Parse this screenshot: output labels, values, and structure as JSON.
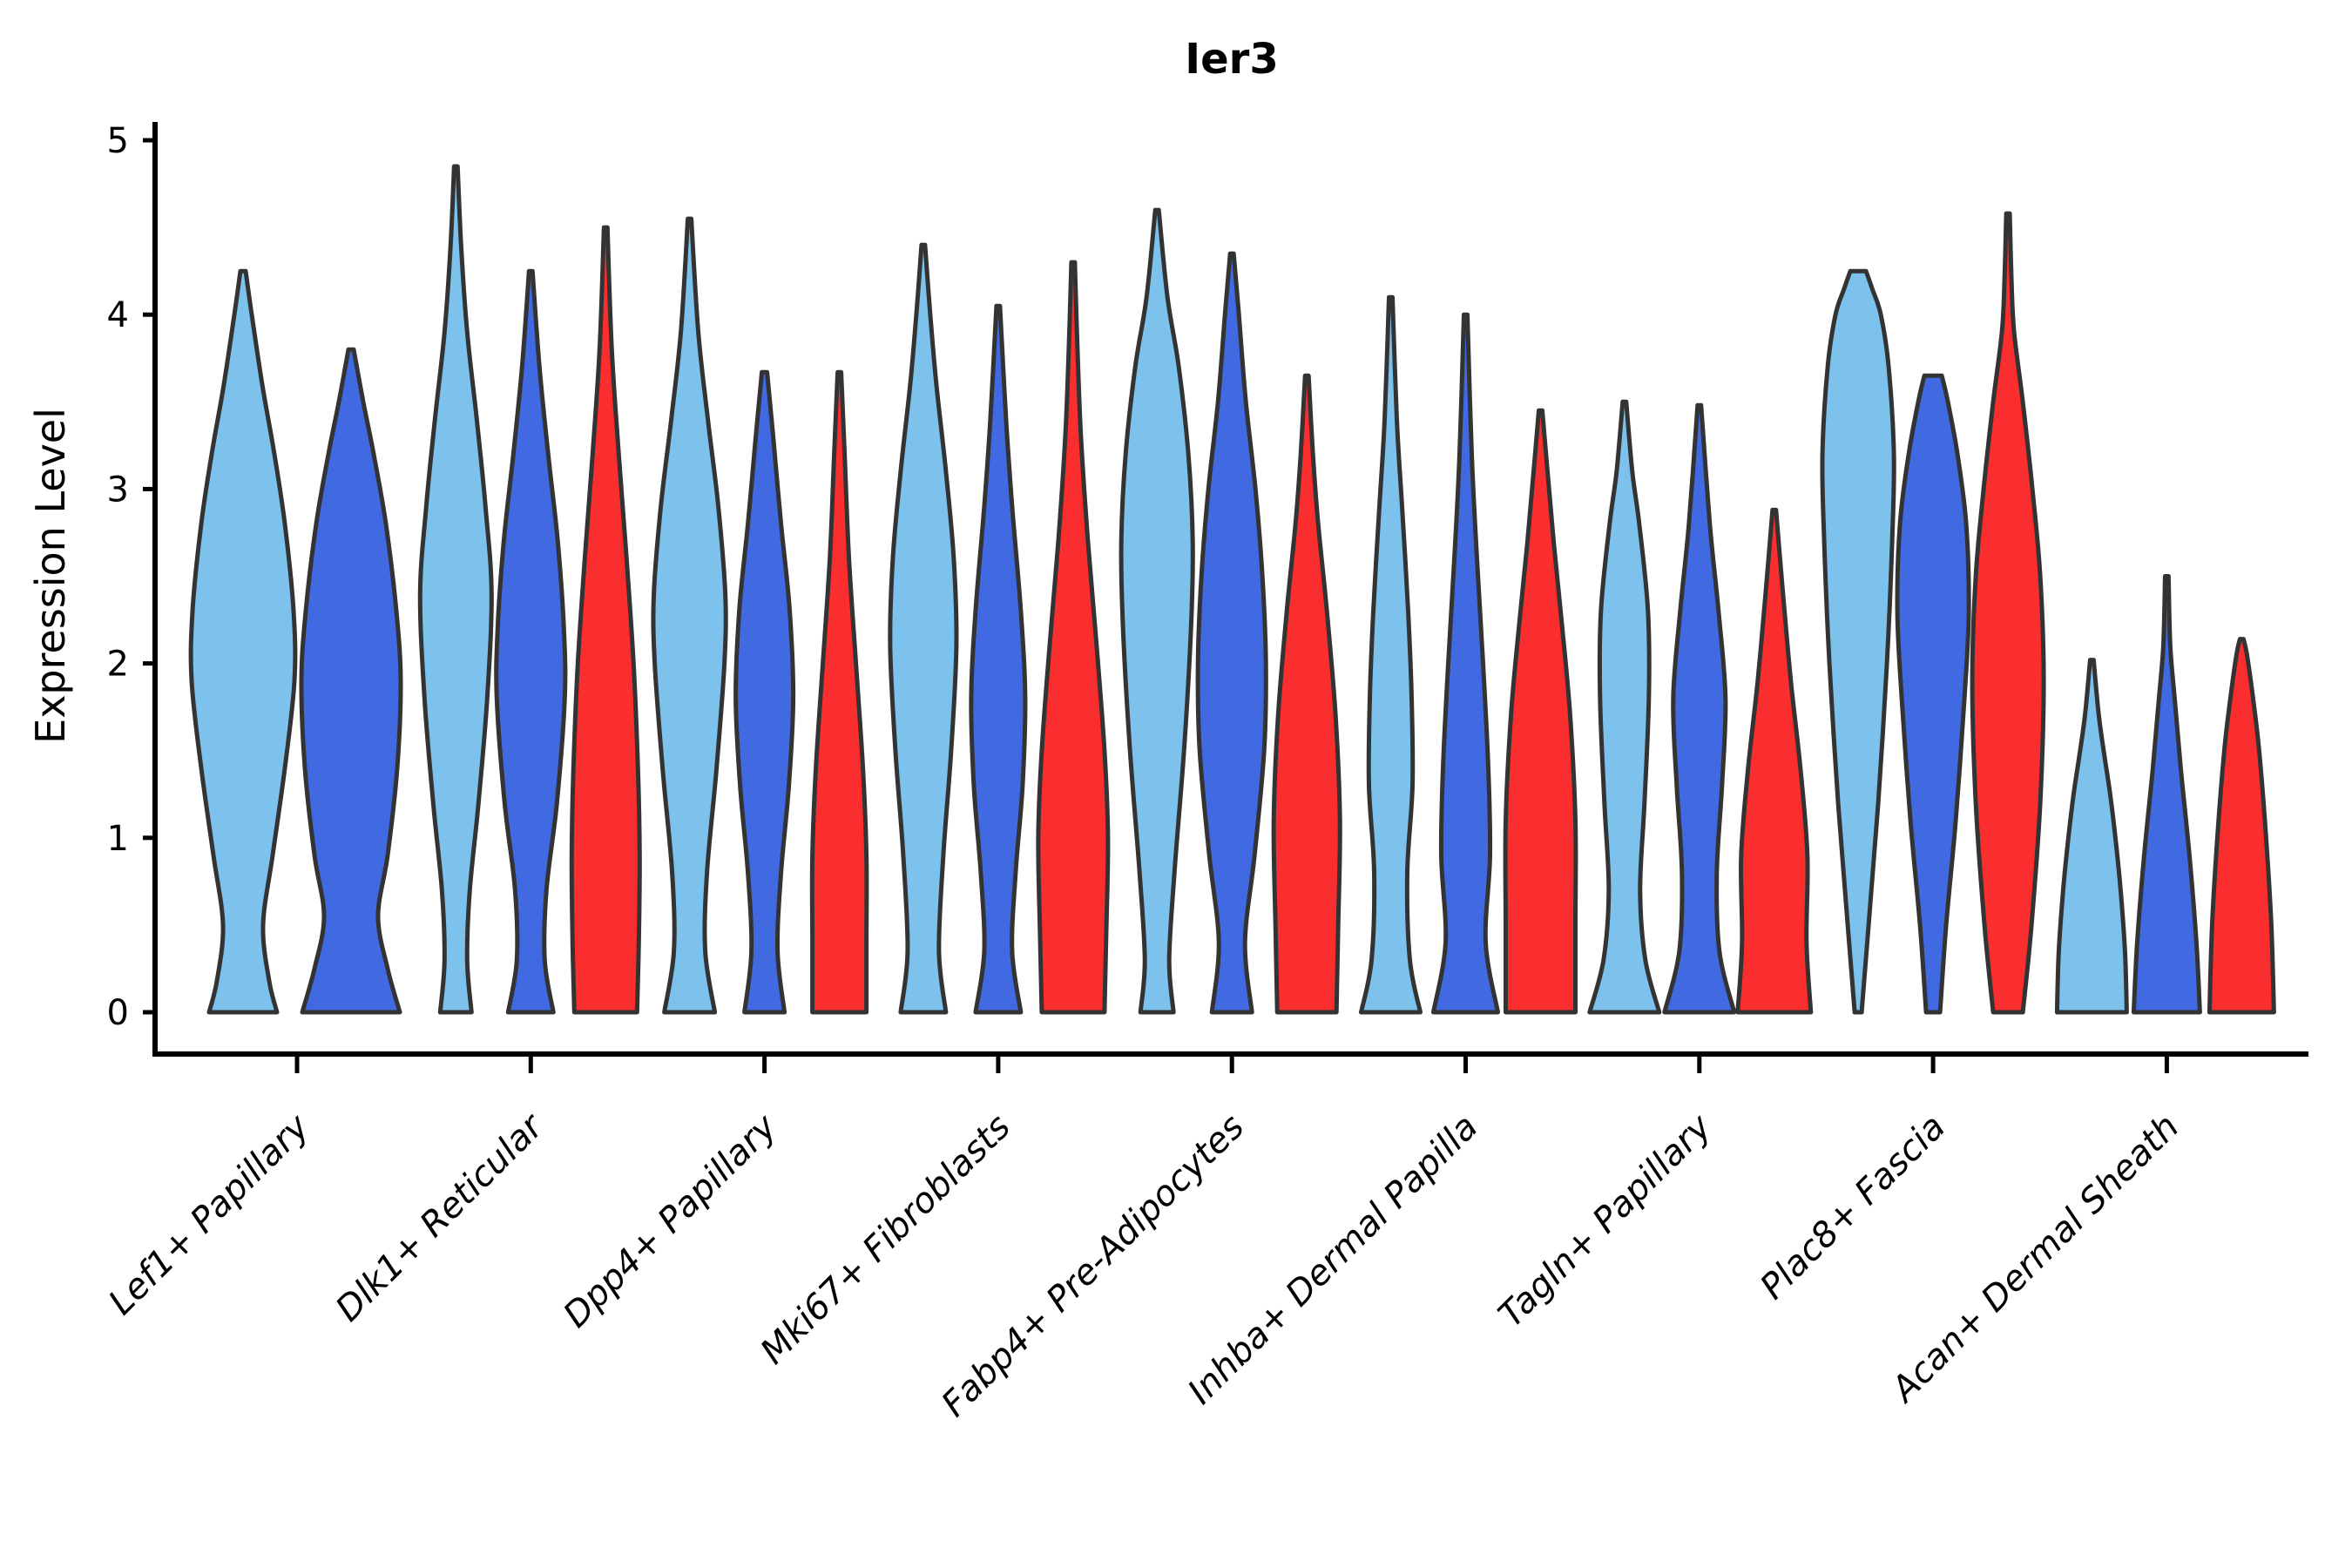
{
  "chart_data": {
    "type": "violin",
    "title": "Ier3",
    "ylabel": "Expression Level",
    "xlabel": "",
    "ylim": [
      0,
      5
    ],
    "yticks": [
      "0",
      "1",
      "2",
      "3",
      "4",
      "5"
    ],
    "grid": false,
    "legend": "none",
    "categories": [
      "Lef1+ Papillary",
      "Dlk1+ Reticular",
      "Dpp4+ Papillary",
      "Mki67+ Fibroblasts",
      "Fabp4+ Pre-Adipocytes",
      "Inhba+ Dermal Papilla",
      "Tagln+ Papillary",
      "Plac8+ Fascia",
      "Acan+ Dermal Sheath"
    ],
    "hues": [
      {
        "name": "hue_1",
        "color": "#7CC2EC"
      },
      {
        "name": "hue_2",
        "color": "#4169E1"
      },
      {
        "name": "hue_3",
        "color": "#FA2E2E"
      }
    ],
    "edge_color": "#333333",
    "axis_color": "#000000",
    "profile_units": "pairs of [expression_value, half_width_px]",
    "violins": [
      {
        "category_index": 0,
        "hue": 0,
        "max": 4.25,
        "profile": [
          [
            0,
            39
          ],
          [
            0.18,
            30
          ],
          [
            0.5,
            23
          ],
          [
            0.9,
            34
          ],
          [
            1.4,
            48
          ],
          [
            1.9,
            59
          ],
          [
            2.3,
            58
          ],
          [
            2.8,
            48
          ],
          [
            3.2,
            36
          ],
          [
            3.6,
            22
          ],
          [
            4.0,
            10
          ],
          [
            4.25,
            3
          ]
        ]
      },
      {
        "category_index": 0,
        "hue": 1,
        "max": 3.8,
        "profile": [
          [
            0,
            56
          ],
          [
            0.25,
            42
          ],
          [
            0.55,
            31
          ],
          [
            0.9,
            42
          ],
          [
            1.4,
            53
          ],
          [
            1.9,
            57
          ],
          [
            2.3,
            52
          ],
          [
            2.8,
            40
          ],
          [
            3.2,
            26
          ],
          [
            3.5,
            14
          ],
          [
            3.8,
            3
          ]
        ]
      },
      {
        "category_index": 1,
        "hue": 0,
        "max": 4.85,
        "profile": [
          [
            0,
            18
          ],
          [
            0.3,
            13
          ],
          [
            0.7,
            16
          ],
          [
            1.2,
            26
          ],
          [
            1.8,
            36
          ],
          [
            2.4,
            41
          ],
          [
            2.9,
            34
          ],
          [
            3.4,
            24
          ],
          [
            3.9,
            13
          ],
          [
            4.4,
            6
          ],
          [
            4.85,
            2
          ]
        ]
      },
      {
        "category_index": 1,
        "hue": 1,
        "max": 4.25,
        "profile": [
          [
            0,
            26
          ],
          [
            0.3,
            16
          ],
          [
            0.7,
            18
          ],
          [
            1.2,
            30
          ],
          [
            1.8,
            39
          ],
          [
            2.2,
            38
          ],
          [
            2.7,
            31
          ],
          [
            3.2,
            20
          ],
          [
            3.7,
            10
          ],
          [
            4.25,
            2
          ]
        ]
      },
      {
        "category_index": 1,
        "hue": 2,
        "max": 4.5,
        "profile": [
          [
            0,
            36
          ],
          [
            0.4,
            38
          ],
          [
            0.9,
            39
          ],
          [
            1.4,
            37
          ],
          [
            2.0,
            32
          ],
          [
            2.6,
            24
          ],
          [
            3.2,
            15
          ],
          [
            3.8,
            7
          ],
          [
            4.5,
            2
          ]
        ]
      },
      {
        "category_index": 2,
        "hue": 0,
        "max": 4.55,
        "profile": [
          [
            0,
            29
          ],
          [
            0.35,
            18
          ],
          [
            0.8,
            20
          ],
          [
            1.4,
            31
          ],
          [
            2.0,
            40
          ],
          [
            2.4,
            41
          ],
          [
            2.9,
            33
          ],
          [
            3.4,
            21
          ],
          [
            3.9,
            10
          ],
          [
            4.55,
            2
          ]
        ]
      },
      {
        "category_index": 2,
        "hue": 1,
        "max": 3.67,
        "profile": [
          [
            0,
            23
          ],
          [
            0.35,
            15
          ],
          [
            0.8,
            19
          ],
          [
            1.3,
            28
          ],
          [
            1.8,
            33
          ],
          [
            2.3,
            29
          ],
          [
            2.8,
            19
          ],
          [
            3.3,
            10
          ],
          [
            3.67,
            3
          ]
        ]
      },
      {
        "category_index": 2,
        "hue": 2,
        "max": 3.67,
        "profile": [
          [
            0,
            31
          ],
          [
            0.4,
            31
          ],
          [
            0.9,
            31
          ],
          [
            1.4,
            27
          ],
          [
            2.0,
            19
          ],
          [
            2.6,
            11
          ],
          [
            3.2,
            6
          ],
          [
            3.67,
            2
          ]
        ]
      },
      {
        "category_index": 3,
        "hue": 0,
        "max": 4.4,
        "profile": [
          [
            0,
            26
          ],
          [
            0.35,
            18
          ],
          [
            0.9,
            23
          ],
          [
            1.5,
            32
          ],
          [
            2.1,
            38
          ],
          [
            2.6,
            35
          ],
          [
            3.1,
            26
          ],
          [
            3.6,
            15
          ],
          [
            4.0,
            8
          ],
          [
            4.4,
            2
          ]
        ]
      },
      {
        "category_index": 3,
        "hue": 1,
        "max": 4.05,
        "profile": [
          [
            0,
            26
          ],
          [
            0.35,
            16
          ],
          [
            0.8,
            20
          ],
          [
            1.3,
            28
          ],
          [
            1.8,
            31
          ],
          [
            2.3,
            26
          ],
          [
            2.9,
            16
          ],
          [
            3.4,
            9
          ],
          [
            4.05,
            2
          ]
        ]
      },
      {
        "category_index": 3,
        "hue": 2,
        "max": 4.3,
        "profile": [
          [
            0,
            36
          ],
          [
            0.45,
            38
          ],
          [
            1.0,
            40
          ],
          [
            1.5,
            36
          ],
          [
            2.1,
            27
          ],
          [
            2.7,
            17
          ],
          [
            3.3,
            9
          ],
          [
            3.8,
            5
          ],
          [
            4.3,
            2
          ]
        ]
      },
      {
        "category_index": 4,
        "hue": 0,
        "max": 4.6,
        "profile": [
          [
            0,
            19
          ],
          [
            0.3,
            14
          ],
          [
            0.8,
            20
          ],
          [
            1.5,
            31
          ],
          [
            2.2,
            39
          ],
          [
            2.7,
            41
          ],
          [
            3.2,
            36
          ],
          [
            3.7,
            25
          ],
          [
            4.1,
            12
          ],
          [
            4.6,
            2
          ]
        ]
      },
      {
        "category_index": 4,
        "hue": 1,
        "max": 4.35,
        "profile": [
          [
            0,
            23
          ],
          [
            0.4,
            15
          ],
          [
            0.9,
            26
          ],
          [
            1.5,
            37
          ],
          [
            2.0,
            39
          ],
          [
            2.5,
            35
          ],
          [
            3.0,
            27
          ],
          [
            3.5,
            16
          ],
          [
            4.0,
            8
          ],
          [
            4.35,
            2
          ]
        ]
      },
      {
        "category_index": 4,
        "hue": 2,
        "max": 3.65,
        "profile": [
          [
            0,
            34
          ],
          [
            0.5,
            36
          ],
          [
            1.1,
            38
          ],
          [
            1.7,
            33
          ],
          [
            2.3,
            23
          ],
          [
            2.8,
            13
          ],
          [
            3.2,
            7
          ],
          [
            3.65,
            2
          ]
        ]
      },
      {
        "category_index": 5,
        "hue": 0,
        "max": 4.1,
        "profile": [
          [
            0,
            34
          ],
          [
            0.3,
            22
          ],
          [
            0.8,
            19
          ],
          [
            1.3,
            25
          ],
          [
            1.8,
            24
          ],
          [
            2.3,
            20
          ],
          [
            2.9,
            13
          ],
          [
            3.4,
            7
          ],
          [
            4.1,
            2
          ]
        ]
      },
      {
        "category_index": 5,
        "hue": 1,
        "max": 4.0,
        "profile": [
          [
            0,
            37
          ],
          [
            0.4,
            23
          ],
          [
            0.9,
            28
          ],
          [
            1.4,
            26
          ],
          [
            2.0,
            20
          ],
          [
            2.6,
            13
          ],
          [
            3.2,
            7
          ],
          [
            4.0,
            2
          ]
        ]
      },
      {
        "category_index": 5,
        "hue": 2,
        "max": 3.45,
        "profile": [
          [
            0,
            40
          ],
          [
            0.5,
            40
          ],
          [
            1.1,
            40
          ],
          [
            1.7,
            34
          ],
          [
            2.2,
            25
          ],
          [
            2.7,
            15
          ],
          [
            3.1,
            8
          ],
          [
            3.45,
            2
          ]
        ]
      },
      {
        "category_index": 6,
        "hue": 0,
        "max": 3.5,
        "profile": [
          [
            0,
            40
          ],
          [
            0.3,
            24
          ],
          [
            0.7,
            18
          ],
          [
            1.2,
            23
          ],
          [
            1.8,
            28
          ],
          [
            2.3,
            27
          ],
          [
            2.8,
            17
          ],
          [
            3.1,
            9
          ],
          [
            3.5,
            2
          ]
        ]
      },
      {
        "category_index": 6,
        "hue": 1,
        "max": 3.48,
        "profile": [
          [
            0,
            40
          ],
          [
            0.35,
            23
          ],
          [
            0.8,
            20
          ],
          [
            1.3,
            26
          ],
          [
            1.8,
            30
          ],
          [
            2.3,
            22
          ],
          [
            2.8,
            12
          ],
          [
            3.48,
            2
          ]
        ]
      },
      {
        "category_index": 6,
        "hue": 2,
        "max": 2.88,
        "profile": [
          [
            0,
            42
          ],
          [
            0.4,
            37
          ],
          [
            0.9,
            38
          ],
          [
            1.4,
            30
          ],
          [
            1.9,
            19
          ],
          [
            2.4,
            10
          ],
          [
            2.88,
            2
          ]
        ]
      },
      {
        "category_index": 7,
        "hue": 0,
        "max": 4.25,
        "profile": [
          [
            0,
            4
          ],
          [
            0.5,
            12
          ],
          [
            1.2,
            23
          ],
          [
            2.0,
            33
          ],
          [
            2.7,
            39
          ],
          [
            3.2,
            41
          ],
          [
            3.7,
            35
          ],
          [
            4.0,
            26
          ],
          [
            4.15,
            16
          ],
          [
            4.25,
            9
          ]
        ]
      },
      {
        "category_index": 7,
        "hue": 1,
        "max": 3.65,
        "profile": [
          [
            0,
            8
          ],
          [
            0.5,
            15
          ],
          [
            1.1,
            26
          ],
          [
            1.8,
            36
          ],
          [
            2.3,
            41
          ],
          [
            2.8,
            38
          ],
          [
            3.2,
            28
          ],
          [
            3.5,
            17
          ],
          [
            3.65,
            10
          ]
        ]
      },
      {
        "category_index": 7,
        "hue": 2,
        "max": 4.58,
        "profile": [
          [
            0,
            17
          ],
          [
            0.5,
            27
          ],
          [
            1.2,
            37
          ],
          [
            1.9,
            41
          ],
          [
            2.5,
            37
          ],
          [
            3.0,
            28
          ],
          [
            3.5,
            17
          ],
          [
            3.9,
            7
          ],
          [
            4.2,
            4
          ],
          [
            4.58,
            2
          ]
        ]
      },
      {
        "category_index": 8,
        "hue": 0,
        "max": 2.02,
        "profile": [
          [
            0,
            40
          ],
          [
            0.35,
            38
          ],
          [
            0.7,
            33
          ],
          [
            1.0,
            27
          ],
          [
            1.25,
            21
          ],
          [
            1.45,
            15
          ],
          [
            1.7,
            8
          ],
          [
            2.02,
            2
          ]
        ]
      },
      {
        "category_index": 8,
        "hue": 1,
        "max": 2.5,
        "profile": [
          [
            0,
            38
          ],
          [
            0.4,
            34
          ],
          [
            0.9,
            26
          ],
          [
            1.4,
            16
          ],
          [
            1.8,
            9
          ],
          [
            2.1,
            4
          ],
          [
            2.5,
            2
          ]
        ]
      },
      {
        "category_index": 8,
        "hue": 2,
        "max": 2.14,
        "profile": [
          [
            0,
            37
          ],
          [
            0.5,
            34
          ],
          [
            1.0,
            28
          ],
          [
            1.5,
            20
          ],
          [
            1.8,
            13
          ],
          [
            2.05,
            6
          ],
          [
            2.14,
            2
          ]
        ]
      }
    ]
  }
}
